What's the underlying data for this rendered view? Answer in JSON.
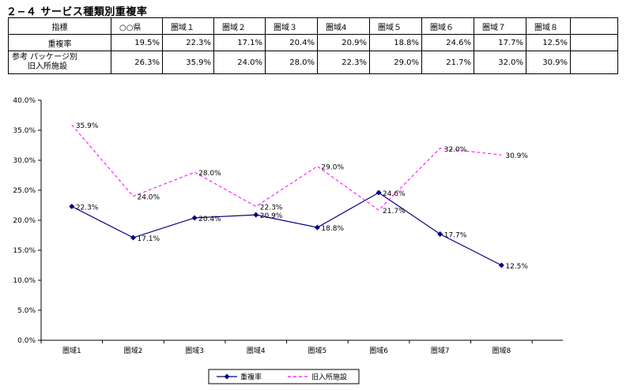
{
  "title": "２−４ サービス種類別重複率",
  "table": {
    "header_label": "指標",
    "columns": [
      "○○県",
      "圏域１",
      "圏域２",
      "圏域３",
      "圏域4",
      "圏域５",
      "圏域６",
      "圏域７",
      "圏域８"
    ],
    "rows": [
      {
        "label": "重複率",
        "values": [
          "19.5%",
          "22.3%",
          "17.1%",
          "20.4%",
          "20.9%",
          "18.8%",
          "24.6%",
          "17.7%",
          "12.5%"
        ]
      },
      {
        "label_line1": "参考 パッケージ別",
        "label_line2": "旧入所施設",
        "values": [
          "26.3%",
          "35.9%",
          "24.0%",
          "28.0%",
          "22.3%",
          "29.0%",
          "21.7%",
          "32.0%",
          "30.9%"
        ]
      }
    ]
  },
  "chart_data": {
    "type": "line",
    "categories": [
      "圏域1",
      "圏域2",
      "圏域3",
      "圏域4",
      "圏域5",
      "圏域6",
      "圏域7",
      "圏域8"
    ],
    "series": [
      {
        "name": "重複率",
        "values": [
          22.3,
          17.1,
          20.4,
          20.9,
          18.8,
          24.6,
          17.7,
          12.5
        ],
        "labels": [
          "22.3%",
          "17.1%",
          "20.4%",
          "20.9%",
          "18.8%",
          "24.6%",
          "17.7%",
          "12.5%"
        ],
        "color": "#000080",
        "style": "solid",
        "marker": "diamond"
      },
      {
        "name": "旧入所施設",
        "values": [
          35.9,
          24.0,
          28.0,
          22.3,
          29.0,
          21.7,
          32.0,
          30.9
        ],
        "labels": [
          "35.9%",
          "24.0%",
          "28.0%",
          "22.3%",
          "29.0%",
          "21.7%",
          "32.0%",
          "30.9%"
        ],
        "color": "#ff00ff",
        "style": "dashed",
        "marker": "none"
      }
    ],
    "ylim": [
      0,
      40
    ],
    "yticks": [
      "0.0%",
      "5.0%",
      "10.0%",
      "15.0%",
      "20.0%",
      "25.0%",
      "30.0%",
      "35.0%",
      "40.0%"
    ],
    "grid": false,
    "legend_position": "bottom"
  }
}
